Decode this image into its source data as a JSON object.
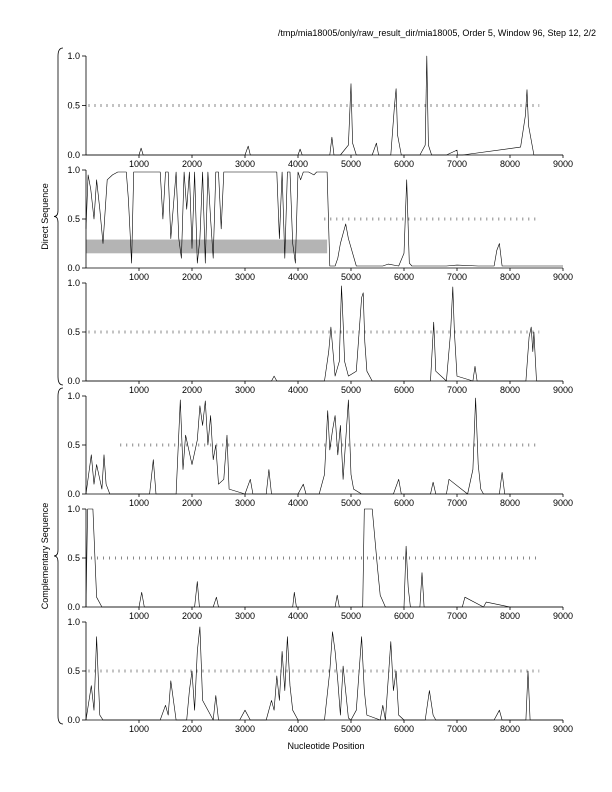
{
  "header": "/tmp/mia18005/only/raw_result_dir/mia18005, Order 5, Window 96, Step 12, 2/2",
  "xlabel": "Nucleotide Position",
  "groups": [
    {
      "label": "Direct Sequence"
    },
    {
      "label": "Complementary Sequence"
    }
  ],
  "colors": {
    "trace": "#000000",
    "ticks": "#555555",
    "band": "#b4b4b4"
  },
  "chart_data": [
    {
      "type": "line",
      "group": "Direct Sequence",
      "frame": 1,
      "xlim": [
        0,
        9000
      ],
      "ylim": [
        0,
        1
      ],
      "xticks": [
        "1000",
        "2000",
        "3000",
        "4000",
        "5000",
        "6000",
        "7000",
        "8000",
        "9000"
      ],
      "yticks": [
        "0.0",
        "0.5",
        "1.0"
      ],
      "tick_row": {
        "y": 0.5,
        "x_start": 50,
        "x_end": 8550
      },
      "series": [
        {
          "x": [
            0,
            1000,
            1040,
            1080,
            1800,
            3000,
            3060,
            3100,
            4000,
            4040,
            4080,
            4600,
            4640,
            4680,
            4800,
            4950,
            5000,
            5030,
            5100,
            5400,
            5480,
            5520,
            5750,
            5820,
            5850,
            5880,
            5950,
            6300,
            6400,
            6430,
            6460,
            6520,
            6800,
            7000,
            7010,
            7100,
            8200,
            8290,
            8320,
            8350,
            8450,
            9000
          ],
          "y": [
            0,
            0,
            0.07,
            0,
            0,
            0,
            0.09,
            0,
            0,
            0.06,
            0,
            0,
            0.18,
            0,
            0,
            0.1,
            0.72,
            0.12,
            0,
            0,
            0.12,
            0,
            0,
            0.5,
            0.67,
            0.2,
            0,
            0,
            0.1,
            1.0,
            0.1,
            0,
            0,
            0.05,
            0,
            0,
            0.08,
            0.4,
            0.66,
            0.3,
            0,
            0
          ]
        }
      ]
    },
    {
      "type": "line",
      "group": "Direct Sequence",
      "frame": 2,
      "xlim": [
        0,
        9000
      ],
      "ylim": [
        0,
        1
      ],
      "xticks": [
        "1000",
        "2000",
        "3000",
        "4000",
        "5000",
        "6000",
        "7000",
        "8000",
        "9000"
      ],
      "yticks": [
        "0.0",
        "0.5",
        "1.0"
      ],
      "tick_row": {
        "y": 0.5,
        "x_start": 4500,
        "x_end": 8550
      },
      "band": {
        "x0": 0,
        "x1": 4550,
        "y0": 0.15,
        "y1": 0.29
      },
      "series": [
        {
          "x": [
            0,
            40,
            90,
            150,
            200,
            260,
            320,
            400,
            500,
            600,
            700,
            760,
            800,
            860,
            900,
            1000,
            1200,
            1300,
            1400,
            1450,
            1500,
            1550,
            1600,
            1700,
            1750,
            1800,
            1850,
            1900,
            1950,
            2000,
            2050,
            2100,
            2150,
            2200,
            2250,
            2300,
            2350,
            2400,
            2450,
            2500,
            2550,
            2600,
            2700,
            2900,
            3100,
            3400,
            3500,
            3600,
            3650,
            3700,
            3750,
            3800,
            3850,
            3900,
            3950,
            4000,
            4050,
            4100,
            4200,
            4300,
            4350,
            4400,
            4500,
            4550,
            4600,
            4700,
            4750,
            4800,
            4900,
            4950,
            5100,
            5400,
            5600,
            5700,
            5900,
            6000,
            6050,
            6100,
            6150,
            6300,
            6500,
            6600,
            6800,
            7000,
            7400,
            7700,
            7750,
            7800,
            7850,
            7900,
            8400,
            9000
          ],
          "y": [
            0.4,
            0.95,
            0.8,
            0.5,
            0.9,
            0.6,
            0.25,
            0.9,
            0.95,
            0.98,
            0.98,
            0.98,
            0.7,
            0.05,
            0.98,
            0.98,
            0.98,
            0.98,
            0.98,
            0.5,
            0.98,
            0.98,
            0.3,
            0.98,
            0.3,
            0.1,
            0.98,
            0.6,
            0.98,
            0.2,
            0.98,
            0.05,
            0.3,
            0.98,
            0.05,
            0.98,
            0.5,
            0.1,
            0.98,
            0.98,
            0.4,
            0.98,
            0.98,
            0.98,
            0.98,
            0.98,
            0.98,
            0.98,
            0.3,
            0.98,
            0.1,
            0.98,
            0.98,
            0.25,
            0.05,
            0.98,
            0.9,
            0.98,
            0.98,
            0.95,
            0.98,
            0.98,
            0.98,
            0.98,
            0.02,
            0.02,
            0.1,
            0.25,
            0.45,
            0.3,
            0.02,
            0.02,
            0.02,
            0.04,
            0.02,
            0.15,
            0.9,
            0.05,
            0.02,
            0.02,
            0.02,
            0.02,
            0.02,
            0.03,
            0.02,
            0.02,
            0.18,
            0.25,
            0.02,
            0.02,
            0.02,
            0.02
          ]
        }
      ]
    },
    {
      "type": "line",
      "group": "Direct Sequence",
      "frame": 3,
      "xlim": [
        0,
        9000
      ],
      "ylim": [
        0,
        1
      ],
      "xticks": [
        "1000",
        "2000",
        "3000",
        "4000",
        "5000",
        "6000",
        "7000",
        "8000",
        "9000"
      ],
      "yticks": [
        "0.0",
        "0.5",
        "1.0"
      ],
      "tick_row": {
        "y": 0.5,
        "x_start": 50,
        "x_end": 8550
      },
      "series": [
        {
          "x": [
            0,
            3500,
            3550,
            3600,
            4500,
            4580,
            4620,
            4700,
            4780,
            4820,
            4850,
            4880,
            4950,
            5100,
            5200,
            5230,
            5260,
            5300,
            5400,
            5500,
            6500,
            6560,
            6600,
            6800,
            6880,
            6920,
            6950,
            7000,
            7300,
            7340,
            7380,
            8300,
            8360,
            8400,
            8430,
            8450,
            8500,
            9000
          ],
          "y": [
            0,
            0,
            0.05,
            0,
            0,
            0.3,
            0.55,
            0.05,
            0.2,
            0.97,
            0.6,
            0.2,
            0.05,
            0.1,
            0.85,
            0.9,
            0.4,
            0.1,
            0,
            0,
            0,
            0.6,
            0.1,
            0,
            0.5,
            0.96,
            0.5,
            0.05,
            0,
            0.15,
            0,
            0,
            0.45,
            0.55,
            0.3,
            0.5,
            0,
            0
          ]
        }
      ]
    },
    {
      "type": "line",
      "group": "Complementary Sequence",
      "frame": 1,
      "xlim": [
        0,
        9000
      ],
      "ylim": [
        0,
        1
      ],
      "xticks": [
        "1000",
        "2000",
        "3000",
        "4000",
        "5000",
        "6000",
        "7000",
        "8000",
        "9000"
      ],
      "yticks": [
        "0.0",
        "0.5",
        "1.0"
      ],
      "tick_row": {
        "y": 0.5,
        "x_start": 650,
        "x_end": 8550
      },
      "series": [
        {
          "x": [
            0,
            100,
            150,
            200,
            300,
            340,
            380,
            450,
            1200,
            1270,
            1320,
            1700,
            1780,
            1830,
            1880,
            2000,
            2100,
            2150,
            2200,
            2250,
            2300,
            2350,
            2400,
            2450,
            2500,
            2600,
            2660,
            2700,
            3000,
            3100,
            3150,
            3400,
            3450,
            3500,
            4000,
            4100,
            4150,
            4400,
            4500,
            4560,
            4600,
            4650,
            4700,
            4750,
            4800,
            4850,
            4950,
            5000,
            5050,
            5200,
            5800,
            5900,
            5950,
            6500,
            6550,
            6600,
            6800,
            6850,
            7200,
            7300,
            7350,
            7400,
            7450,
            7500,
            7800,
            7850,
            7900,
            8000,
            9000
          ],
          "y": [
            0,
            0.4,
            0.1,
            0.3,
            0.05,
            0.4,
            0.1,
            0,
            0,
            0.35,
            0,
            0,
            0.96,
            0.25,
            0.6,
            0.3,
            0.55,
            0.9,
            0.7,
            0.95,
            0.5,
            0.8,
            0.35,
            0.5,
            0.1,
            0.15,
            0.6,
            0.05,
            0,
            0.15,
            0,
            0,
            0.25,
            0,
            0,
            0.1,
            0,
            0,
            0.2,
            0.85,
            0.45,
            0.65,
            0.8,
            0.4,
            0.7,
            0.15,
            0.96,
            0.2,
            0.05,
            0,
            0,
            0.15,
            0,
            0,
            0.12,
            0,
            0,
            0.15,
            0,
            0.25,
            0.98,
            0.3,
            0.05,
            0,
            0,
            0.22,
            0,
            0,
            0
          ]
        }
      ]
    },
    {
      "type": "line",
      "group": "Complementary Sequence",
      "frame": 2,
      "xlim": [
        0,
        9000
      ],
      "ylim": [
        0,
        1
      ],
      "xticks": [
        "1000",
        "2000",
        "3000",
        "4000",
        "5000",
        "6000",
        "7000",
        "8000",
        "9000"
      ],
      "yticks": [
        "0.0",
        "0.5",
        "1.0"
      ],
      "tick_row": {
        "y": 0.5,
        "x_start": 100,
        "x_end": 8550
      },
      "series": [
        {
          "x": [
            0,
            30,
            130,
            200,
            300,
            1000,
            1050,
            1100,
            2050,
            2100,
            2140,
            2400,
            2460,
            2500,
            3900,
            3930,
            3970,
            4700,
            4740,
            4780,
            5220,
            5250,
            5400,
            5500,
            5550,
            5650,
            6000,
            6040,
            6080,
            6120,
            6300,
            6340,
            6380,
            7100,
            7150,
            7500,
            7550,
            8000,
            9000
          ],
          "y": [
            0,
            1.0,
            1.0,
            0.1,
            0,
            0,
            0.15,
            0,
            0,
            0.26,
            0,
            0,
            0.1,
            0,
            0,
            0.15,
            0,
            0,
            0.12,
            0,
            0,
            1.0,
            1.0,
            0.4,
            0.12,
            0,
            0,
            0.62,
            0.2,
            0,
            0,
            0.35,
            0,
            0,
            0.1,
            0,
            0.05,
            0,
            0
          ]
        }
      ]
    },
    {
      "type": "line",
      "group": "Complementary Sequence",
      "frame": 3,
      "xlim": [
        0,
        9000
      ],
      "ylim": [
        0,
        1
      ],
      "xticks": [
        "1000",
        "2000",
        "3000",
        "4000",
        "5000",
        "6000",
        "7000",
        "8000",
        "9000"
      ],
      "yticks": [
        "0.0",
        "0.5",
        "1.0"
      ],
      "tick_row": {
        "y": 0.5,
        "x_start": 50,
        "x_end": 8550
      },
      "series": [
        {
          "x": [
            0,
            100,
            150,
            200,
            260,
            320,
            1400,
            1500,
            1550,
            1600,
            1700,
            1900,
            1950,
            2000,
            2050,
            2100,
            2150,
            2200,
            2400,
            2450,
            2500,
            2900,
            3000,
            3100,
            3400,
            3500,
            3550,
            3600,
            3650,
            3700,
            3750,
            3800,
            3850,
            3900,
            4000,
            4500,
            4600,
            4650,
            4700,
            4750,
            4800,
            4850,
            4950,
            5000,
            5100,
            5200,
            5250,
            5300,
            5550,
            5600,
            5650,
            5700,
            5750,
            5800,
            5850,
            5900,
            6000,
            6400,
            6480,
            6550,
            6600,
            7700,
            7800,
            7850,
            8300,
            8340,
            8380,
            9000
          ],
          "y": [
            0,
            0.35,
            0.1,
            0.85,
            0.05,
            0,
            0,
            0.15,
            0.05,
            0.4,
            0,
            0,
            0.3,
            0.5,
            0.1,
            0.7,
            0.95,
            0.2,
            0,
            0.25,
            0,
            0,
            0.1,
            0,
            0,
            0.2,
            0.1,
            0.45,
            0.2,
            0.7,
            0.3,
            0.85,
            0.35,
            0.1,
            0,
            0,
            0.5,
            0.9,
            0.7,
            0.4,
            0.05,
            0.55,
            0.02,
            0,
            0.1,
            0.85,
            0.3,
            0.05,
            0,
            0.15,
            0,
            0.4,
            0.8,
            0.3,
            0.5,
            0.05,
            0,
            0,
            0.3,
            0.05,
            0,
            0,
            0.1,
            0,
            0,
            0.5,
            0,
            0
          ]
        }
      ]
    }
  ]
}
